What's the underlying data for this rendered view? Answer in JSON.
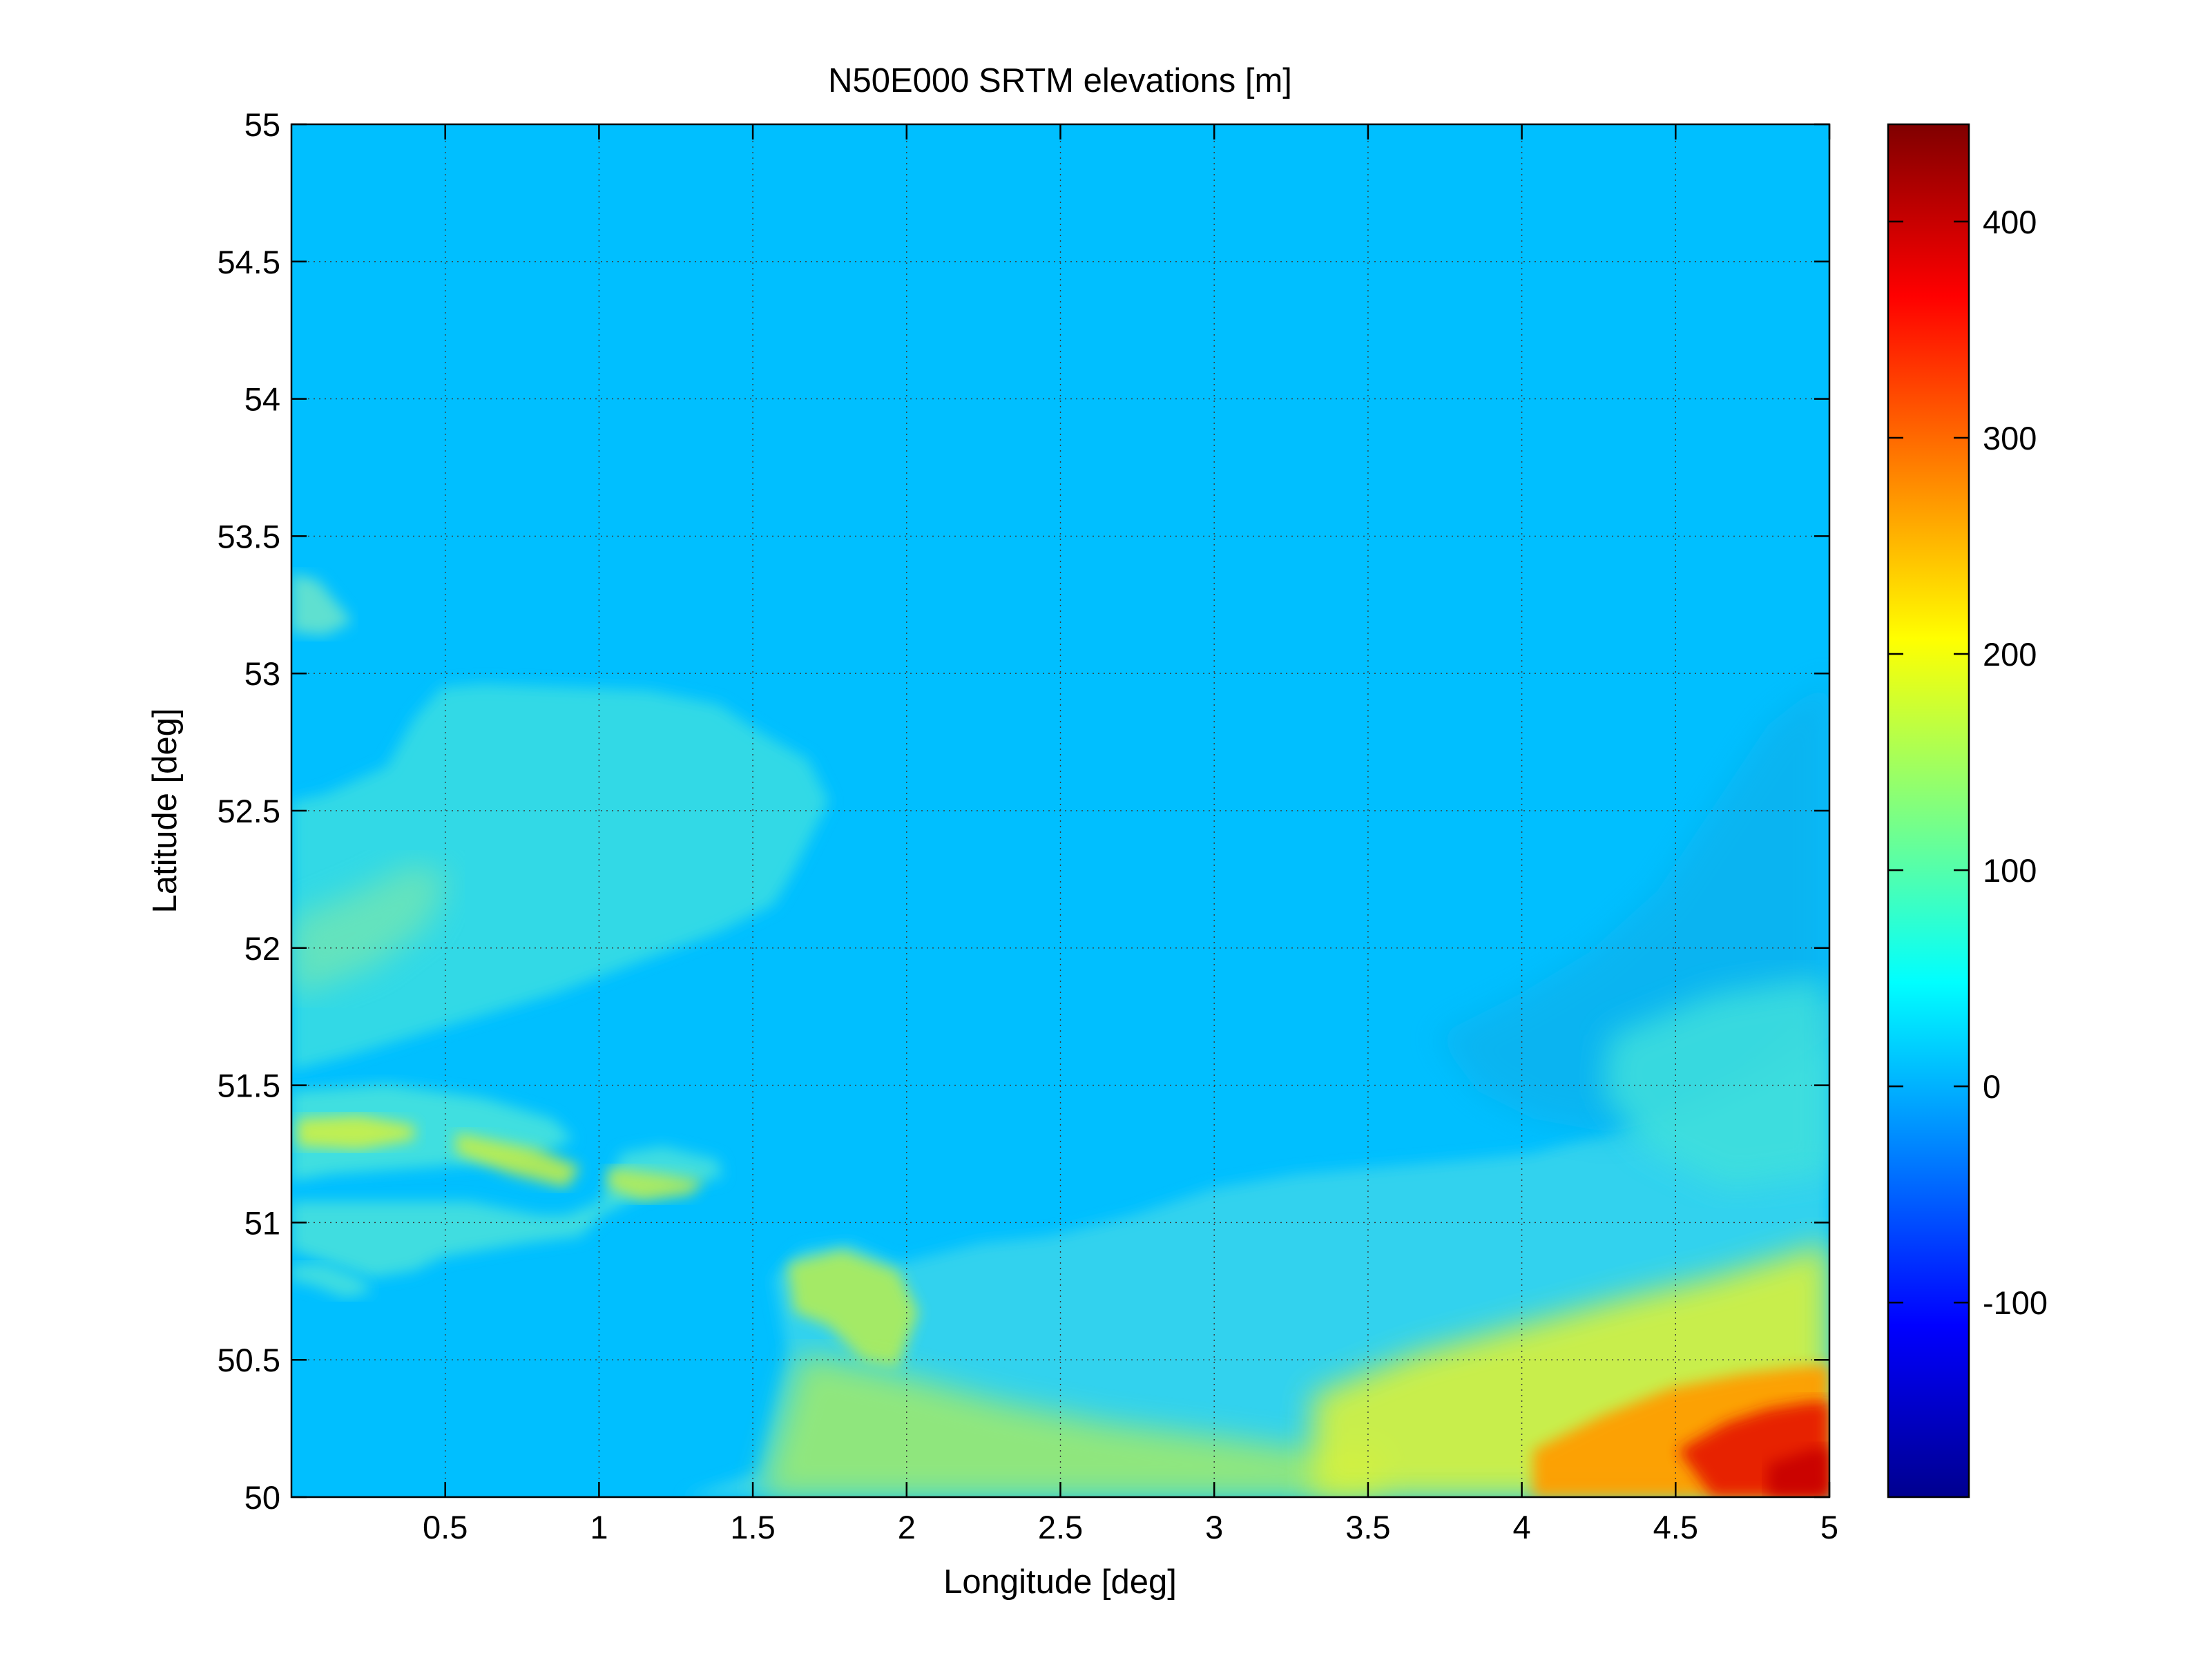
{
  "chart_data": {
    "type": "heatmap",
    "title": "N50E000 SRTM elevations [m]",
    "xlabel": "Longitude [deg]",
    "ylabel": "Latitude [deg]",
    "xlim": [
      0,
      5
    ],
    "ylim": [
      50,
      55
    ],
    "xticks": [
      0.5,
      1,
      1.5,
      2,
      2.5,
      3,
      3.5,
      4,
      4.5,
      5
    ],
    "xtick_labels": [
      "0.5",
      "1",
      "1.5",
      "2",
      "2.5",
      "3",
      "3.5",
      "4",
      "4.5",
      "5"
    ],
    "yticks": [
      50,
      50.5,
      51,
      51.5,
      52,
      52.5,
      53,
      53.5,
      54,
      54.5,
      55
    ],
    "ytick_labels": [
      "50",
      "50.5",
      "51",
      "51.5",
      "52",
      "52.5",
      "53",
      "53.5",
      "54",
      "54.5",
      "55"
    ],
    "grid": true,
    "colormap": "jet",
    "colorbar": {
      "clim": [
        -190,
        445
      ],
      "ticks": [
        -100,
        0,
        100,
        200,
        300,
        400
      ],
      "tick_labels": [
        "-100",
        "0",
        "100",
        "200",
        "300",
        "400"
      ]
    },
    "sea_level_value": 0
  }
}
